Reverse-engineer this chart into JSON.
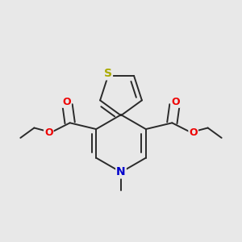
{
  "bg_color": "#e8e8e8",
  "bond_color": "#2a2a2a",
  "bond_width": 1.4,
  "atom_colors": {
    "S": "#aaaa00",
    "O": "#ee0000",
    "N": "#0000cc",
    "C": "#2a2a2a"
  },
  "font_size": 9,
  "fig_size": [
    3.0,
    3.0
  ],
  "dpi": 100
}
